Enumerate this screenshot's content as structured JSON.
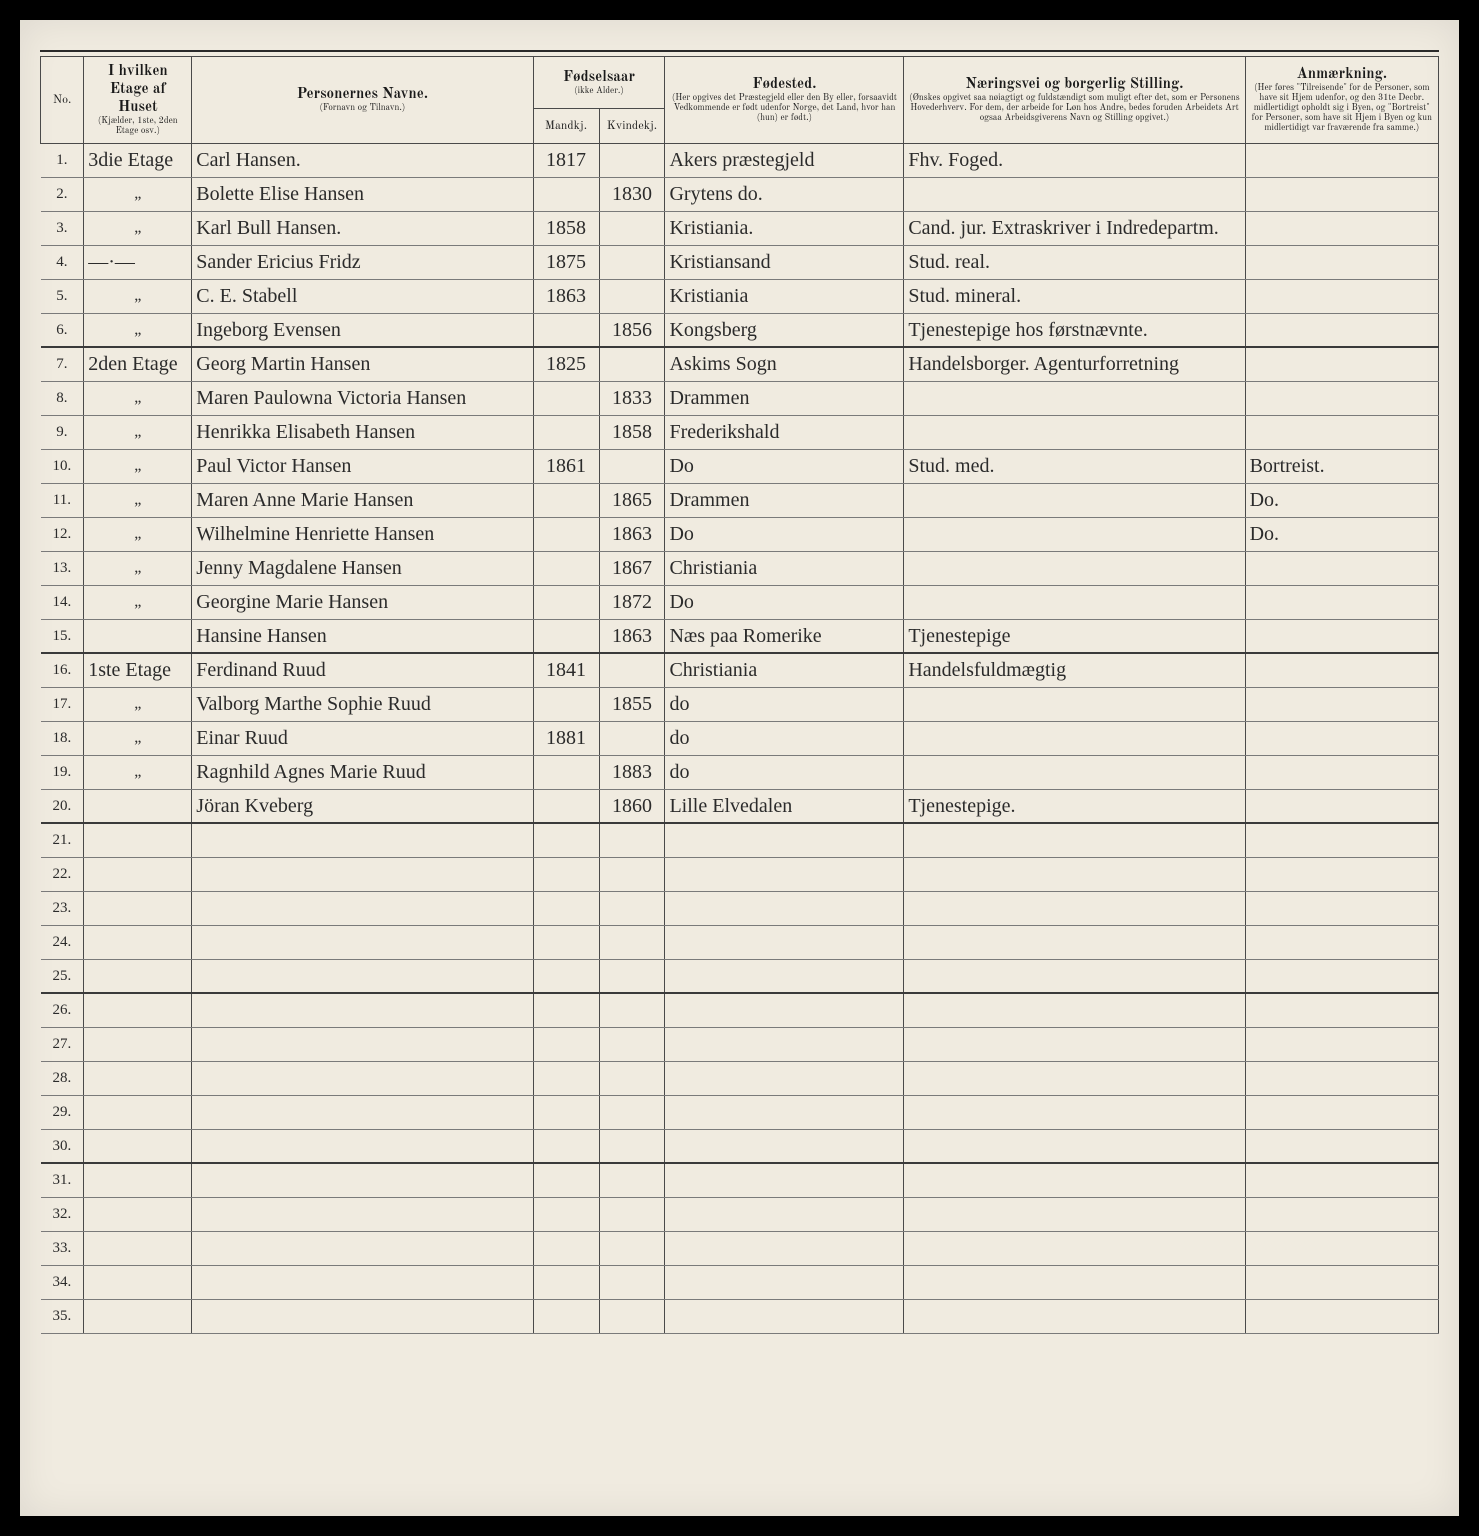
{
  "headers": {
    "no": "No.",
    "floor_title": "I hvilken Etage af Huset",
    "floor_sub": "(Kjælder, 1ste, 2den Etage osv.)",
    "name_title": "Personernes Navne.",
    "name_sub": "(Fornavn og Tilnavn.)",
    "year_title": "Fødselsaar",
    "year_sub": "(ikke Alder.)",
    "year_m": "Mandkj.",
    "year_f": "Kvindekj.",
    "birthplace_title": "Fødested.",
    "birthplace_sub": "(Her opgives det Præstegjeld eller den By eller, forsaavidt Vedkommende er født udenfor Norge, det Land, hvor han (hun) er født.)",
    "occ_title": "Næringsvei og borgerlig Stilling.",
    "occ_sub": "(Ønskes opgivet saa nøiagtigt og fuldstændigt som muligt efter det, som er Personens Hovederhverv. For dem, der arbeide for Løn hos Andre, bedes foruden Arbeidets Art ogsaa Arbeidsgiverens Navn og Stilling opgivet.)",
    "rem_title": "Anmærkning.",
    "rem_sub": "(Her føres \"Tilreisende\" for de Personer, som have sit Hjem uden­for, og den 31te Decbr. midlertidigt opholdt sig i Byen, og \"Bortreist\" for Personer, som have sit Hjem i Byen og kun midlertidigt var fraværende fra samme.)"
  },
  "rows": [
    {
      "no": "1.",
      "floor": "3die Etage",
      "name": "Carl Hansen.",
      "ym": "1817",
      "yf": "",
      "bp": "Akers præstegjeld",
      "occ": "Fhv. Foged.",
      "rem": "",
      "sep": false
    },
    {
      "no": "2.",
      "floor": "„",
      "name": "Bolette Elise Hansen",
      "ym": "",
      "yf": "1830",
      "bp": "Grytens do.",
      "occ": "",
      "rem": "",
      "sep": false
    },
    {
      "no": "3.",
      "floor": "„",
      "name": "Karl Bull Hansen.",
      "ym": "1858",
      "yf": "",
      "bp": "Kristiania.",
      "occ": "Cand. jur. Extraskriver i Indredepartm.",
      "rem": "",
      "sep": false
    },
    {
      "no": "4.",
      "floor": "—·—",
      "name": "Sander Ericius Fridz",
      "ym": "1875",
      "yf": "",
      "bp": "Kristiansand",
      "occ": "Stud. real.",
      "rem": "",
      "sep": false
    },
    {
      "no": "5.",
      "floor": "„",
      "name": "C. E. Stabell",
      "ym": "1863",
      "yf": "",
      "bp": "Kristiania",
      "occ": "Stud. mineral.",
      "rem": "",
      "sep": false
    },
    {
      "no": "6.",
      "floor": "„",
      "name": "Ingeborg Evensen",
      "ym": "",
      "yf": "1856",
      "bp": "Kongsberg",
      "occ": "Tjenestepige hos førstnævnte.",
      "rem": "",
      "sep": true
    },
    {
      "no": "7.",
      "floor": "2den Etage",
      "name": "Georg Martin Hansen",
      "ym": "1825",
      "yf": "",
      "bp": "Askims Sogn",
      "occ": "Handelsborger. Agenturforretning",
      "rem": "",
      "sep": false
    },
    {
      "no": "8.",
      "floor": "„",
      "name": "Maren Paulowna Victoria Hansen",
      "ym": "",
      "yf": "1833",
      "bp": "Drammen",
      "occ": "",
      "rem": "",
      "sep": false
    },
    {
      "no": "9.",
      "floor": "„",
      "name": "Henrikka Elisabeth Hansen",
      "ym": "",
      "yf": "1858",
      "bp": "Frederikshald",
      "occ": "",
      "rem": "",
      "sep": false
    },
    {
      "no": "10.",
      "floor": "„",
      "name": "Paul Victor Hansen",
      "ym": "1861",
      "yf": "",
      "bp": "Do",
      "occ": "Stud. med.",
      "rem": "Bortreist.",
      "sep": false
    },
    {
      "no": "11.",
      "floor": "„",
      "name": "Maren Anne Marie Hansen",
      "ym": "",
      "yf": "1865",
      "bp": "Drammen",
      "occ": "",
      "rem": "Do.",
      "sep": false
    },
    {
      "no": "12.",
      "floor": "„",
      "name": "Wilhelmine Henriette Hansen",
      "ym": "",
      "yf": "1863",
      "bp": "Do",
      "occ": "",
      "rem": "Do.",
      "sep": false
    },
    {
      "no": "13.",
      "floor": "„",
      "name": "Jenny Magdalene Hansen",
      "ym": "",
      "yf": "1867",
      "bp": "Christiania",
      "occ": "",
      "rem": "",
      "sep": false
    },
    {
      "no": "14.",
      "floor": "„",
      "name": "Georgine Marie Hansen",
      "ym": "",
      "yf": "1872",
      "bp": "Do",
      "occ": "",
      "rem": "",
      "sep": false
    },
    {
      "no": "15.",
      "floor": "",
      "name": "Hansine Hansen",
      "ym": "",
      "yf": "1863",
      "bp": "Næs paa Romerike",
      "occ": "Tjenestepige",
      "rem": "",
      "sep": true
    },
    {
      "no": "16.",
      "floor": "1ste Etage",
      "name": "Ferdinand Ruud",
      "ym": "1841",
      "yf": "",
      "bp": "Christiania",
      "occ": "Handelsfuldmægtig",
      "rem": "",
      "sep": false
    },
    {
      "no": "17.",
      "floor": "„",
      "name": "Valborg Marthe Sophie Ruud",
      "ym": "",
      "yf": "1855",
      "bp": "do",
      "occ": "",
      "rem": "",
      "sep": false
    },
    {
      "no": "18.",
      "floor": "„",
      "name": "Einar Ruud",
      "ym": "1881",
      "yf": "",
      "bp": "do",
      "occ": "",
      "rem": "",
      "sep": false
    },
    {
      "no": "19.",
      "floor": "„",
      "name": "Ragnhild Agnes Marie Ruud",
      "ym": "",
      "yf": "1883",
      "bp": "do",
      "occ": "",
      "rem": "",
      "sep": false
    },
    {
      "no": "20.",
      "floor": "",
      "name": "Jöran Kveberg",
      "ym": "",
      "yf": "1860",
      "bp": "Lille Elvedalen",
      "occ": "Tjenestepige.",
      "rem": "",
      "sep": true
    },
    {
      "no": "21.",
      "floor": "",
      "name": "",
      "ym": "",
      "yf": "",
      "bp": "",
      "occ": "",
      "rem": "",
      "sep": false
    },
    {
      "no": "22.",
      "floor": "",
      "name": "",
      "ym": "",
      "yf": "",
      "bp": "",
      "occ": "",
      "rem": "",
      "sep": false
    },
    {
      "no": "23.",
      "floor": "",
      "name": "",
      "ym": "",
      "yf": "",
      "bp": "",
      "occ": "",
      "rem": "",
      "sep": false
    },
    {
      "no": "24.",
      "floor": "",
      "name": "",
      "ym": "",
      "yf": "",
      "bp": "",
      "occ": "",
      "rem": "",
      "sep": false
    },
    {
      "no": "25.",
      "floor": "",
      "name": "",
      "ym": "",
      "yf": "",
      "bp": "",
      "occ": "",
      "rem": "",
      "sep": true
    },
    {
      "no": "26.",
      "floor": "",
      "name": "",
      "ym": "",
      "yf": "",
      "bp": "",
      "occ": "",
      "rem": "",
      "sep": false
    },
    {
      "no": "27.",
      "floor": "",
      "name": "",
      "ym": "",
      "yf": "",
      "bp": "",
      "occ": "",
      "rem": "",
      "sep": false
    },
    {
      "no": "28.",
      "floor": "",
      "name": "",
      "ym": "",
      "yf": "",
      "bp": "",
      "occ": "",
      "rem": "",
      "sep": false
    },
    {
      "no": "29.",
      "floor": "",
      "name": "",
      "ym": "",
      "yf": "",
      "bp": "",
      "occ": "",
      "rem": "",
      "sep": false
    },
    {
      "no": "30.",
      "floor": "",
      "name": "",
      "ym": "",
      "yf": "",
      "bp": "",
      "occ": "",
      "rem": "",
      "sep": true
    },
    {
      "no": "31.",
      "floor": "",
      "name": "",
      "ym": "",
      "yf": "",
      "bp": "",
      "occ": "",
      "rem": "",
      "sep": false
    },
    {
      "no": "32.",
      "floor": "",
      "name": "",
      "ym": "",
      "yf": "",
      "bp": "",
      "occ": "",
      "rem": "",
      "sep": false
    },
    {
      "no": "33.",
      "floor": "",
      "name": "",
      "ym": "",
      "yf": "",
      "bp": "",
      "occ": "",
      "rem": "",
      "sep": false
    },
    {
      "no": "34.",
      "floor": "",
      "name": "",
      "ym": "",
      "yf": "",
      "bp": "",
      "occ": "",
      "rem": "",
      "sep": false
    },
    {
      "no": "35.",
      "floor": "",
      "name": "",
      "ym": "",
      "yf": "",
      "bp": "",
      "occ": "",
      "rem": "",
      "sep": false
    }
  ],
  "colors": {
    "paper": "#f0ebe0",
    "ink": "#2b2b2b",
    "rule": "#4a4a4a"
  }
}
